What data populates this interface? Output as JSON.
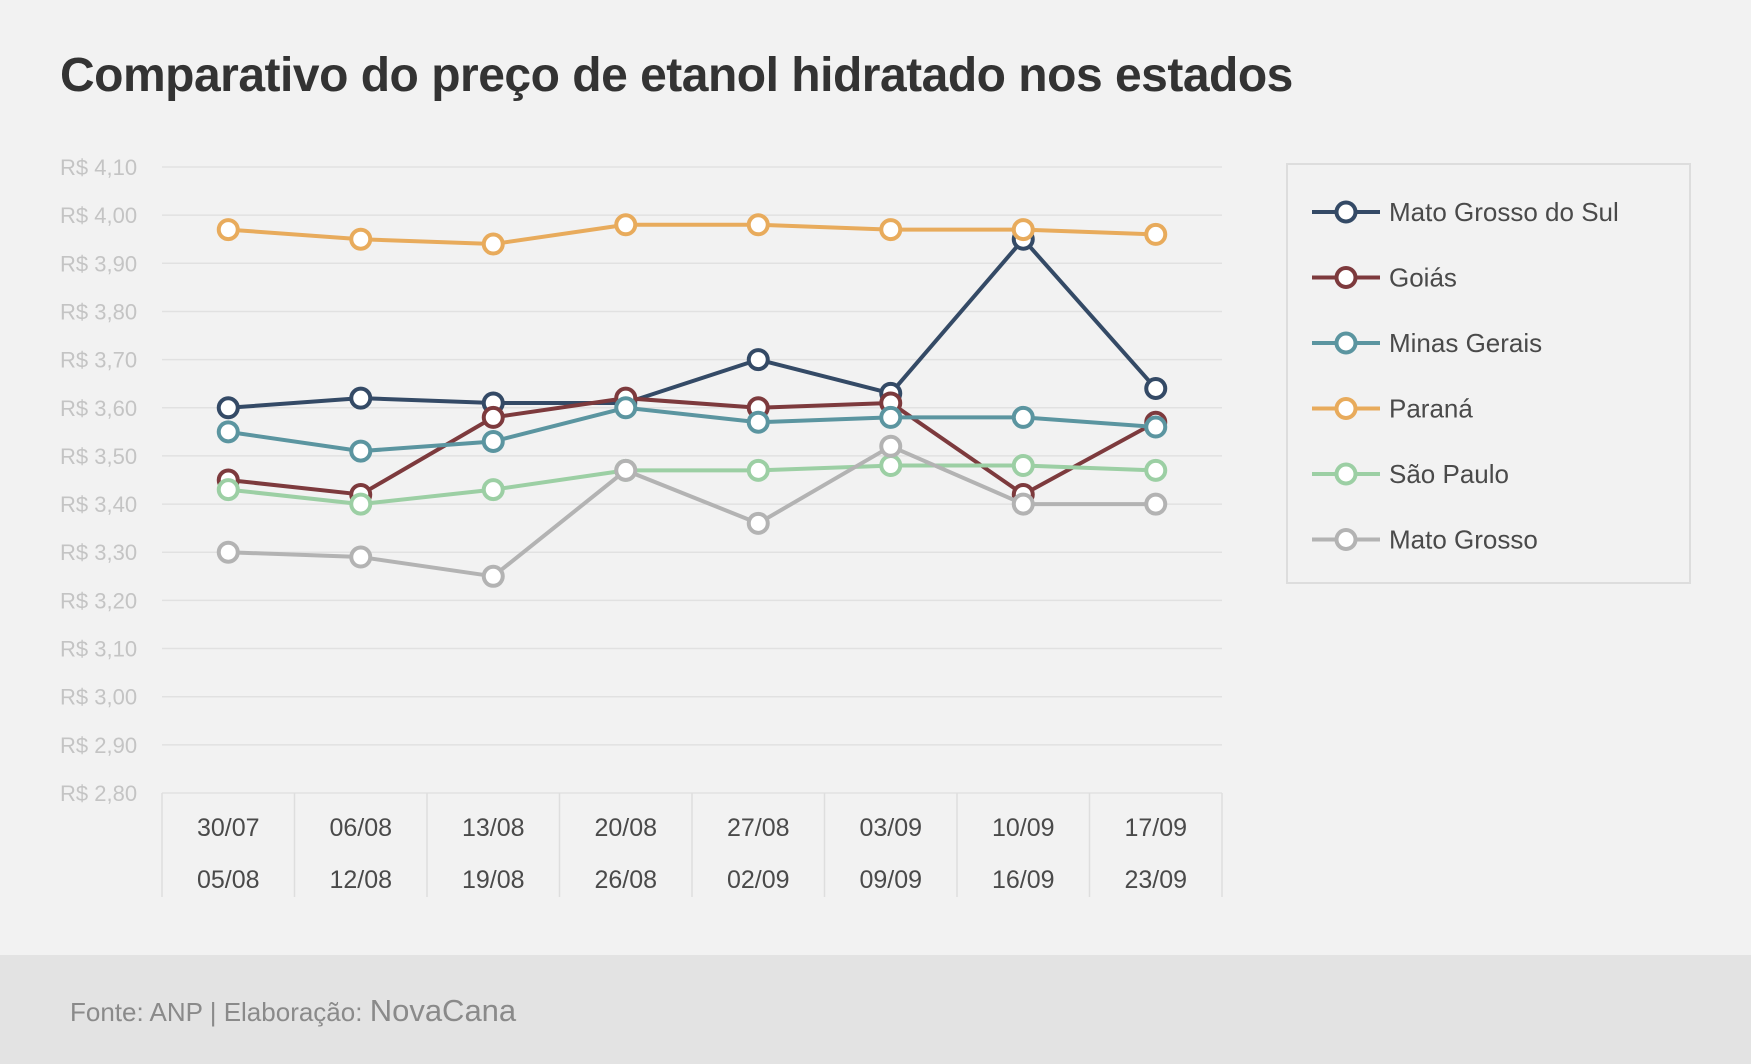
{
  "title": "Comparativo do preço de etanol hidratado nos estados",
  "footer": {
    "source_text": "Fonte: ANP | Elaboração:",
    "brand": "NovaCana"
  },
  "chart_data": {
    "type": "line",
    "title": "Comparativo do preço de etanol hidratado nos estados",
    "xlabel": "",
    "ylabel": "",
    "ylim": [
      2.8,
      4.1
    ],
    "ystep": 0.1,
    "ytick_labels": [
      "R$ 2,80",
      "R$ 2,90",
      "R$ 3,00",
      "R$ 3,10",
      "R$ 3,20",
      "R$ 3,30",
      "R$ 3,40",
      "R$ 3,50",
      "R$ 3,60",
      "R$ 3,70",
      "R$ 3,80",
      "R$ 3,90",
      "R$ 4,00",
      "R$ 4,10"
    ],
    "categories": [
      [
        "30/07",
        "05/08"
      ],
      [
        "06/08",
        "12/08"
      ],
      [
        "13/08",
        "19/08"
      ],
      [
        "20/08",
        "26/08"
      ],
      [
        "27/08",
        "02/09"
      ],
      [
        "03/09",
        "09/09"
      ],
      [
        "10/09",
        "16/09"
      ],
      [
        "17/09",
        "23/09"
      ]
    ],
    "grid": true,
    "legend_position": "right",
    "series": [
      {
        "name": "Mato Grosso do Sul",
        "color": "#344a66",
        "values": [
          3.6,
          3.62,
          3.61,
          3.61,
          3.7,
          3.63,
          3.95,
          3.64
        ]
      },
      {
        "name": "Goiás",
        "color": "#7d3a3d",
        "values": [
          3.45,
          3.42,
          3.58,
          3.62,
          3.6,
          3.61,
          3.42,
          3.57
        ]
      },
      {
        "name": "Minas Gerais",
        "color": "#5b95a0",
        "values": [
          3.55,
          3.51,
          3.53,
          3.6,
          3.57,
          3.58,
          3.58,
          3.56
        ]
      },
      {
        "name": "Paraná",
        "color": "#e8ab5c",
        "values": [
          3.97,
          3.95,
          3.94,
          3.98,
          3.98,
          3.97,
          3.97,
          3.96
        ]
      },
      {
        "name": "São Paulo",
        "color": "#9ccfa4",
        "values": [
          3.43,
          3.4,
          3.43,
          3.47,
          3.47,
          3.48,
          3.48,
          3.47
        ]
      },
      {
        "name": "Mato Grosso",
        "color": "#b3b3b3",
        "values": [
          3.3,
          3.29,
          3.25,
          3.47,
          3.36,
          3.52,
          3.4,
          3.4
        ]
      }
    ]
  }
}
